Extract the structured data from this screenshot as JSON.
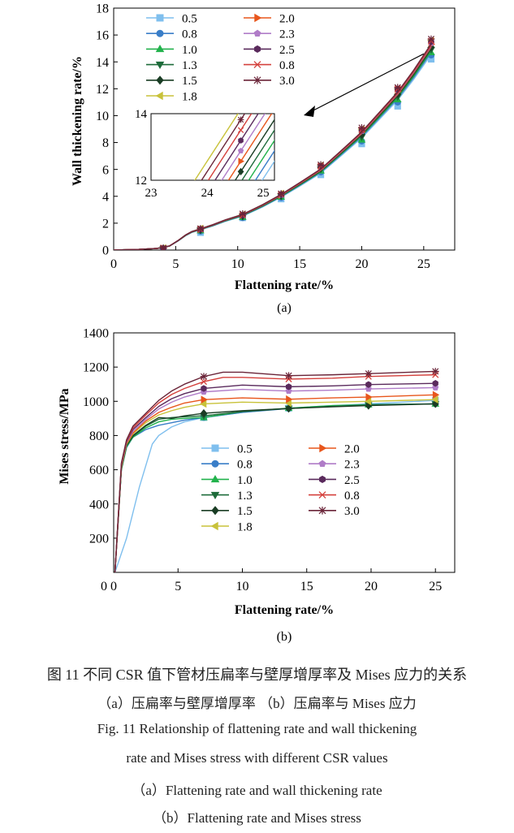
{
  "figure": {
    "caption_cn_main": "图 11   不同 CSR 值下管材压扁率与壁厚增厚率及 Mises 应力的关系",
    "caption_cn_sub": "（a）压扁率与壁厚增厚率     （b）压扁率与 Mises 应力",
    "caption_en_main_1": "Fig. 11   Relationship of flattening rate and wall thickening",
    "caption_en_main_2": "rate and Mises stress with different CSR values",
    "caption_en_sub_a": "（a）Flattening rate and wall thickening rate",
    "caption_en_sub_b": "（b）Flattening rate and Mises stress"
  },
  "chart_data": [
    {
      "id": "a",
      "type": "line",
      "panel_label": "(a)",
      "xlabel": "Flattening rate/%",
      "ylabel": "Wall thickening rate/%",
      "xlim": [
        0,
        27.5
      ],
      "ylim": [
        0,
        18
      ],
      "xticks": [
        0,
        5,
        10,
        15,
        20,
        25
      ],
      "yticks": [
        0,
        2,
        4,
        6,
        8,
        10,
        12,
        14,
        16,
        18
      ],
      "grid": false,
      "legend_position": "top-left",
      "legend_columns": 2,
      "base_curve": {
        "x": [
          0,
          2,
          3.5,
          4.5,
          5.2,
          5.8,
          6.3,
          7.0,
          8.0,
          9.0,
          10.4,
          12.0,
          13.5,
          15.0,
          16.7,
          18.3,
          20.0,
          21.4,
          22.9,
          24.2,
          25.6
        ],
        "y": [
          0.0,
          0.05,
          0.12,
          0.3,
          0.7,
          1.1,
          1.35,
          1.55,
          1.85,
          2.2,
          2.6,
          3.3,
          4.05,
          4.9,
          5.9,
          7.2,
          8.6,
          10.0,
          11.5,
          13.1,
          15.0
        ]
      },
      "series": [
        {
          "name": "0.5",
          "color": "#7fbfee",
          "marker": "square",
          "offset": -0.85,
          "values_at_marker": [
            [
              4.0,
              0.05
            ],
            [
              7.0,
              1.3
            ],
            [
              10.4,
              2.4
            ],
            [
              13.5,
              3.8
            ],
            [
              16.7,
              5.6
            ],
            [
              20.0,
              7.9
            ],
            [
              22.9,
              10.7
            ],
            [
              25.6,
              14.2
            ]
          ]
        },
        {
          "name": "0.8",
          "color": "#3a7ec8",
          "marker": "circle",
          "offset": -0.55,
          "values_at_marker": [
            [
              4.0,
              0.1
            ],
            [
              7.0,
              1.4
            ],
            [
              10.4,
              2.4
            ],
            [
              13.5,
              3.9
            ],
            [
              16.7,
              5.8
            ],
            [
              20.0,
              8.1
            ],
            [
              22.9,
              11.0
            ],
            [
              25.6,
              14.5
            ]
          ]
        },
        {
          "name": "1.0",
          "color": "#22b24c",
          "marker": "triangle-up",
          "offset": -0.35,
          "values_at_marker": [
            [
              4.0,
              0.1
            ],
            [
              7.0,
              1.45
            ],
            [
              10.4,
              2.45
            ],
            [
              13.5,
              3.95
            ],
            [
              16.7,
              5.9
            ],
            [
              20.0,
              8.2
            ],
            [
              22.9,
              11.2
            ],
            [
              25.6,
              14.7
            ]
          ]
        },
        {
          "name": "1.3",
          "color": "#1d6b3a",
          "marker": "triangle-down",
          "offset": -0.15,
          "values_at_marker": [
            [
              4.0,
              0.1
            ],
            [
              7.0,
              1.5
            ],
            [
              10.4,
              2.5
            ],
            [
              13.5,
              4.0
            ],
            [
              16.7,
              6.0
            ],
            [
              20.0,
              8.4
            ],
            [
              22.9,
              11.4
            ],
            [
              25.6,
              14.9
            ]
          ]
        },
        {
          "name": "1.5",
          "color": "#1a3d24",
          "marker": "diamond",
          "offset": 0.05,
          "values_at_marker": [
            [
              4.0,
              0.12
            ],
            [
              7.0,
              1.5
            ],
            [
              10.4,
              2.55
            ],
            [
              13.5,
              4.05
            ],
            [
              16.7,
              6.1
            ],
            [
              20.0,
              8.6
            ],
            [
              22.9,
              11.6
            ],
            [
              25.6,
              15.1
            ]
          ]
        },
        {
          "name": "1.8",
          "color": "#c8c23a",
          "marker": "triangle-left",
          "offset": 0.55,
          "values_at_marker": [
            [
              4.0,
              0.15
            ],
            [
              7.0,
              1.6
            ],
            [
              10.4,
              2.65
            ],
            [
              13.5,
              4.2
            ],
            [
              16.7,
              6.3
            ],
            [
              20.0,
              9.0
            ],
            [
              22.9,
              12.0
            ],
            [
              25.6,
              15.6
            ]
          ]
        },
        {
          "name": "2.0",
          "color": "#e8561c",
          "marker": "triangle-right",
          "offset": 0.2,
          "values_at_marker": [
            [
              4.0,
              0.12
            ],
            [
              7.0,
              1.55
            ],
            [
              10.4,
              2.6
            ],
            [
              13.5,
              4.1
            ],
            [
              16.7,
              6.2
            ],
            [
              20.0,
              8.8
            ],
            [
              22.9,
              11.8
            ],
            [
              25.6,
              15.3
            ]
          ]
        },
        {
          "name": "2.3",
          "color": "#b07cc8",
          "marker": "pentagon",
          "offset": 0.3,
          "values_at_marker": [
            [
              4.0,
              0.12
            ],
            [
              7.0,
              1.55
            ],
            [
              10.4,
              2.6
            ],
            [
              13.5,
              4.1
            ],
            [
              16.7,
              6.2
            ],
            [
              20.0,
              8.85
            ],
            [
              22.9,
              11.9
            ],
            [
              25.6,
              15.4
            ]
          ]
        },
        {
          "name": "2.5",
          "color": "#5a2a5c",
          "marker": "hexagon",
          "offset": 0.4,
          "values_at_marker": [
            [
              4.0,
              0.13
            ],
            [
              7.0,
              1.55
            ],
            [
              10.4,
              2.6
            ],
            [
              13.5,
              4.15
            ],
            [
              16.7,
              6.25
            ],
            [
              20.0,
              8.9
            ],
            [
              22.9,
              11.95
            ],
            [
              25.6,
              15.5
            ]
          ]
        },
        {
          "name": "0.8",
          "color": "#d4403c",
          "marker": "x",
          "offset": 0.45,
          "values_at_marker": [
            [
              4.0,
              0.13
            ],
            [
              7.0,
              1.55
            ],
            [
              10.4,
              2.6
            ],
            [
              13.5,
              4.15
            ],
            [
              16.7,
              6.25
            ],
            [
              20.0,
              8.95
            ],
            [
              22.9,
              12.0
            ],
            [
              25.6,
              15.55
            ]
          ]
        },
        {
          "name": "3.0",
          "color": "#6a2438",
          "marker": "asterisk",
          "offset": 0.65,
          "values_at_marker": [
            [
              4.0,
              0.15
            ],
            [
              7.0,
              1.6
            ],
            [
              10.4,
              2.7
            ],
            [
              13.5,
              4.2
            ],
            [
              16.7,
              6.35
            ],
            [
              20.0,
              9.1
            ],
            [
              22.9,
              12.1
            ],
            [
              25.6,
              15.7
            ]
          ]
        }
      ],
      "inset": {
        "xlim": [
          23,
          25.2
        ],
        "ylim": [
          12,
          14
        ],
        "xticks": [
          23,
          24,
          25
        ],
        "yticks": [
          12,
          14
        ],
        "zoom_target": [
          25.0,
          14.6
        ],
        "markers_x": [
          23.75,
          24.6
        ]
      }
    },
    {
      "id": "b",
      "type": "line",
      "panel_label": "(b)",
      "xlabel": "Flattening rate/%",
      "ylabel": "Mises stress/MPa",
      "xlim": [
        0,
        26.5
      ],
      "ylim": [
        0,
        1400
      ],
      "xticks": [
        0,
        5,
        10,
        15,
        20,
        25
      ],
      "yticks": [
        200,
        400,
        600,
        800,
        1000,
        1200,
        1400
      ],
      "grid": false,
      "legend_position": "center",
      "legend_columns": 2,
      "marker_x": [
        7.0,
        13.6,
        19.8,
        25.0
      ],
      "series": [
        {
          "name": "0.5",
          "color": "#7fbfee",
          "marker": "square",
          "x": [
            0.1,
            1.0,
            2.0,
            3.0,
            3.5,
            4.5,
            5.5,
            7.0,
            10.0,
            13.6,
            17.0,
            19.8,
            25.0
          ],
          "y": [
            0,
            200,
            500,
            750,
            800,
            850,
            880,
            905,
            935,
            960,
            975,
            985,
            1005
          ]
        },
        {
          "name": "0.8",
          "color": "#3a7ec8",
          "marker": "circle",
          "x": [
            0.1,
            0.6,
            1.0,
            1.5,
            2.5,
            3.5,
            4.5,
            5.5,
            7.0,
            10.0,
            13.6,
            17.0,
            19.8,
            25.0
          ],
          "y": [
            0,
            600,
            730,
            790,
            835,
            860,
            875,
            890,
            905,
            935,
            958,
            972,
            982,
            985
          ]
        },
        {
          "name": "1.0",
          "color": "#22b24c",
          "marker": "triangle-up",
          "x": [
            0.1,
            0.6,
            1.0,
            1.5,
            2.5,
            3.5,
            4.5,
            5.5,
            7.0,
            10.0,
            13.6,
            17.0,
            19.8,
            25.0
          ],
          "y": [
            0,
            600,
            735,
            790,
            845,
            880,
            895,
            900,
            905,
            940,
            960,
            975,
            980,
            985
          ]
        },
        {
          "name": "1.3",
          "color": "#1d6b3a",
          "marker": "triangle-down",
          "x": [
            0.1,
            0.6,
            1.0,
            1.5,
            2.5,
            3.5,
            4.5,
            5.5,
            7.0,
            10.0,
            13.6,
            17.0,
            19.8,
            25.0
          ],
          "y": [
            0,
            605,
            740,
            795,
            855,
            895,
            905,
            910,
            915,
            940,
            958,
            970,
            978,
            985
          ]
        },
        {
          "name": "1.5",
          "color": "#1a3d24",
          "marker": "diamond",
          "x": [
            0.1,
            0.6,
            1.0,
            1.5,
            2.5,
            3.5,
            4.5,
            5.5,
            7.0,
            10.0,
            13.6,
            17.0,
            19.8,
            25.0
          ],
          "y": [
            0,
            610,
            745,
            800,
            860,
            905,
            900,
            915,
            930,
            945,
            958,
            968,
            975,
            985
          ]
        },
        {
          "name": "1.8",
          "color": "#c8c23a",
          "marker": "triangle-left",
          "x": [
            0.1,
            0.6,
            1.0,
            1.5,
            2.5,
            3.5,
            4.5,
            5.5,
            7.0,
            10.0,
            13.6,
            17.0,
            19.8,
            25.0
          ],
          "y": [
            0,
            615,
            750,
            810,
            875,
            920,
            945,
            965,
            985,
            995,
            990,
            995,
            1000,
            1010
          ]
        },
        {
          "name": "2.0",
          "color": "#e8561c",
          "marker": "triangle-right",
          "x": [
            0.1,
            0.6,
            1.0,
            1.5,
            2.5,
            3.5,
            4.5,
            5.5,
            7.0,
            10.0,
            13.6,
            17.0,
            19.8,
            25.0
          ],
          "y": [
            0,
            620,
            755,
            815,
            885,
            935,
            965,
            990,
            1010,
            1020,
            1012,
            1020,
            1025,
            1038
          ]
        },
        {
          "name": "2.3",
          "color": "#b07cc8",
          "marker": "pentagon",
          "x": [
            0.1,
            0.6,
            1.0,
            1.5,
            2.5,
            3.5,
            4.5,
            5.5,
            7.0,
            10.0,
            13.6,
            17.0,
            19.8,
            25.0
          ],
          "y": [
            0,
            625,
            760,
            825,
            895,
            955,
            995,
            1025,
            1055,
            1070,
            1060,
            1065,
            1072,
            1080
          ]
        },
        {
          "name": "2.5",
          "color": "#5a2a5c",
          "marker": "hexagon",
          "x": [
            0.1,
            0.6,
            1.0,
            1.5,
            2.5,
            3.5,
            4.5,
            5.5,
            7.0,
            10.0,
            13.6,
            17.0,
            19.8,
            25.0
          ],
          "y": [
            0,
            630,
            765,
            835,
            905,
            970,
            1015,
            1045,
            1075,
            1095,
            1085,
            1090,
            1098,
            1105
          ]
        },
        {
          "name": "0.8",
          "color": "#d4403c",
          "marker": "x",
          "x": [
            0.1,
            0.6,
            1.0,
            1.5,
            2.5,
            3.5,
            4.5,
            5.5,
            7.0,
            8.5,
            10.0,
            13.6,
            17.0,
            19.8,
            25.0
          ],
          "y": [
            0,
            635,
            770,
            845,
            920,
            990,
            1040,
            1075,
            1115,
            1140,
            1140,
            1130,
            1135,
            1145,
            1155
          ]
        },
        {
          "name": "3.0",
          "color": "#6a2438",
          "marker": "asterisk",
          "x": [
            0.1,
            0.6,
            1.0,
            1.5,
            2.5,
            3.5,
            4.5,
            5.5,
            7.0,
            8.5,
            10.0,
            13.6,
            17.0,
            19.8,
            25.0
          ],
          "y": [
            0,
            640,
            775,
            855,
            930,
            1005,
            1060,
            1100,
            1145,
            1170,
            1170,
            1150,
            1155,
            1162,
            1175
          ]
        }
      ]
    }
  ]
}
